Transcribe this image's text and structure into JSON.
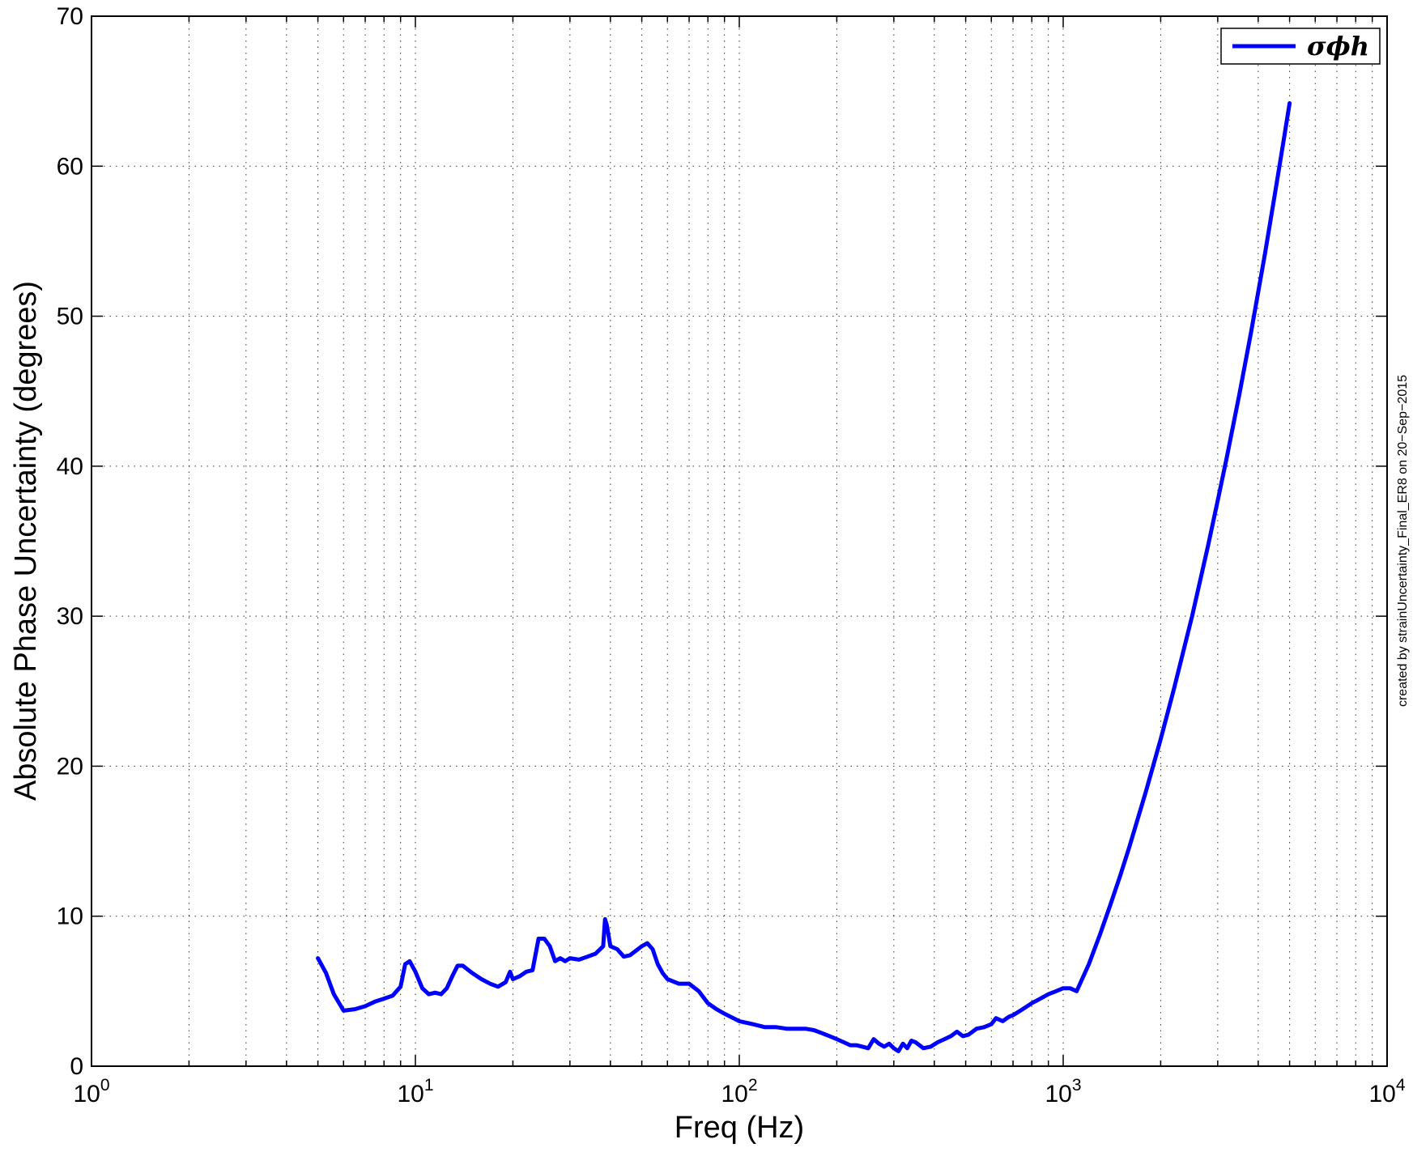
{
  "chart_data": {
    "type": "line",
    "title": "",
    "xlabel": "Freq (Hz)",
    "ylabel": "Absolute Phase Uncertainty (degrees)",
    "xscale": "log",
    "xlim": [
      1,
      10000
    ],
    "ylim": [
      0,
      70
    ],
    "grid": true,
    "legend_position": "top-right",
    "side_note": "created by strainUncertainty_Final_ER8 on 20−Sep−2015",
    "x_ticks": [
      {
        "value": 1,
        "base": "10",
        "exp": "0"
      },
      {
        "value": 10,
        "base": "10",
        "exp": "1"
      },
      {
        "value": 100,
        "base": "10",
        "exp": "2"
      },
      {
        "value": 1000,
        "base": "10",
        "exp": "3"
      },
      {
        "value": 10000,
        "base": "10",
        "exp": "4"
      }
    ],
    "y_ticks": [
      0,
      10,
      20,
      30,
      40,
      50,
      60,
      70
    ],
    "y_tick_labels": [
      "0",
      "10",
      "20",
      "30",
      "40",
      "50",
      "60",
      "70"
    ],
    "series": [
      {
        "name": "σϕh",
        "color": "#0000ff",
        "x": [
          5,
          5.3,
          5.6,
          6,
          6.5,
          7,
          7.5,
          8,
          8.5,
          9,
          9.3,
          9.6,
          10,
          10.5,
          11,
          11.5,
          12,
          12.5,
          13,
          13.5,
          14,
          15,
          16,
          17,
          18,
          19,
          19.6,
          20,
          21,
          22,
          23,
          24,
          25,
          26,
          27,
          28,
          29,
          30,
          32,
          34,
          36,
          38,
          38.5,
          39,
          40,
          42,
          44,
          46,
          48,
          50,
          52,
          54,
          56,
          58,
          60,
          65,
          70,
          75,
          80,
          85,
          90,
          100,
          110,
          120,
          130,
          140,
          150,
          160,
          170,
          180,
          190,
          200,
          210,
          220,
          230,
          240,
          250,
          260,
          270,
          280,
          290,
          300,
          310,
          320,
          330,
          340,
          350,
          370,
          390,
          410,
          430,
          450,
          470,
          490,
          510,
          540,
          570,
          600,
          620,
          650,
          680,
          700,
          750,
          800,
          850,
          900,
          950,
          1000,
          1050,
          1100,
          1200,
          1300,
          1400,
          1500,
          1600,
          1800,
          2000,
          2200,
          2500,
          2800,
          3000,
          3200,
          3500,
          3800,
          4000,
          4200,
          4500,
          4800,
          5000
        ],
        "y": [
          7.2,
          6.2,
          4.8,
          3.7,
          3.8,
          4.0,
          4.3,
          4.5,
          4.7,
          5.3,
          6.8,
          7.0,
          6.3,
          5.2,
          4.8,
          4.9,
          4.8,
          5.2,
          6.0,
          6.7,
          6.7,
          6.2,
          5.8,
          5.5,
          5.3,
          5.6,
          6.3,
          5.8,
          6.0,
          6.3,
          6.4,
          8.5,
          8.5,
          8.0,
          7.0,
          7.2,
          7.0,
          7.2,
          7.1,
          7.3,
          7.5,
          8.0,
          9.8,
          9.4,
          8.0,
          7.8,
          7.3,
          7.4,
          7.7,
          8.0,
          8.2,
          7.8,
          6.8,
          6.2,
          5.8,
          5.5,
          5.5,
          5.0,
          4.2,
          3.8,
          3.5,
          3.0,
          2.8,
          2.6,
          2.6,
          2.5,
          2.5,
          2.5,
          2.4,
          2.2,
          2.0,
          1.8,
          1.6,
          1.4,
          1.4,
          1.3,
          1.2,
          1.8,
          1.5,
          1.3,
          1.5,
          1.2,
          1.0,
          1.5,
          1.2,
          1.7,
          1.6,
          1.2,
          1.3,
          1.6,
          1.8,
          2.0,
          2.3,
          2.0,
          2.1,
          2.5,
          2.6,
          2.8,
          3.2,
          3.0,
          3.3,
          3.4,
          3.8,
          4.2,
          4.5,
          4.8,
          5.0,
          5.2,
          5.2,
          5.0,
          6.8,
          8.8,
          10.8,
          12.7,
          14.6,
          18.3,
          21.8,
          25.2,
          30.0,
          34.7,
          37.7,
          40.6,
          44.8,
          48.9,
          51.6,
          54.2,
          58.1,
          61.8,
          64.2
        ]
      }
    ]
  }
}
